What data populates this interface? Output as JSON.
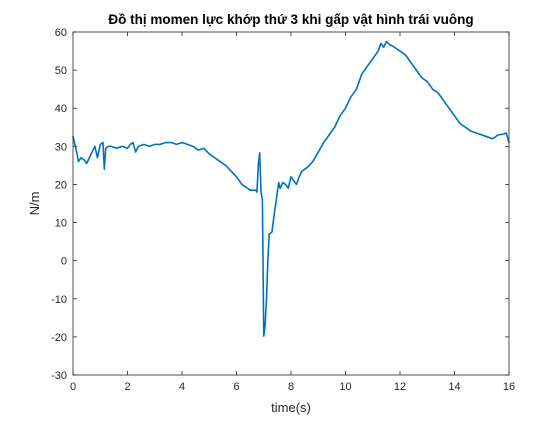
{
  "chart_data": {
    "type": "line",
    "title": "Đồ thị momen lực khớp thứ 3 khi gấp vật hình trái vuông",
    "xlabel": "time(s)",
    "ylabel": "N/m",
    "xlim": [
      0,
      16
    ],
    "ylim": [
      -30,
      60
    ],
    "grid": false,
    "x_ticks": [
      0,
      2,
      4,
      6,
      8,
      10,
      12,
      14,
      16
    ],
    "y_ticks": [
      -30,
      -20,
      -10,
      0,
      10,
      20,
      30,
      40,
      50,
      60
    ],
    "x_tick_labels": [
      "0",
      "2",
      "4",
      "6",
      "8",
      "10",
      "12",
      "14",
      "16"
    ],
    "y_tick_labels": [
      "-30",
      "-20",
      "-10",
      "0",
      "10",
      "20",
      "30",
      "40",
      "50",
      "60"
    ],
    "colors": {
      "series": "#0072BD",
      "axes": "#262626",
      "background": "#ffffff"
    },
    "series": [
      {
        "x": [
          0.0,
          0.07,
          0.15,
          0.2,
          0.3,
          0.4,
          0.5,
          0.6,
          0.7,
          0.8,
          0.9,
          1.0,
          1.1,
          1.15,
          1.2,
          1.3,
          1.4,
          1.6,
          1.8,
          2.0,
          2.1,
          2.2,
          2.3,
          2.4,
          2.6,
          2.8,
          3.0,
          3.2,
          3.4,
          3.6,
          3.8,
          4.0,
          4.2,
          4.4,
          4.6,
          4.8,
          5.0,
          5.2,
          5.4,
          5.6,
          5.8,
          6.0,
          6.2,
          6.4,
          6.5,
          6.6,
          6.7,
          6.75,
          6.8,
          6.85,
          6.9,
          6.95,
          7.0,
          7.05,
          7.1,
          7.15,
          7.2,
          7.3,
          7.4,
          7.5,
          7.55,
          7.6,
          7.7,
          7.8,
          7.9,
          8.0,
          8.1,
          8.2,
          8.3,
          8.4,
          8.5,
          8.6,
          8.8,
          9.0,
          9.2,
          9.4,
          9.6,
          9.8,
          10.0,
          10.2,
          10.4,
          10.6,
          10.8,
          11.0,
          11.2,
          11.3,
          11.4,
          11.5,
          11.6,
          11.8,
          12.0,
          12.2,
          12.4,
          12.6,
          12.8,
          13.0,
          13.2,
          13.4,
          13.6,
          13.8,
          14.0,
          14.2,
          14.4,
          14.6,
          14.8,
          15.0,
          15.2,
          15.4,
          15.6,
          15.8,
          15.9,
          16.0
        ],
        "values": [
          32.5,
          30.5,
          28,
          26,
          27,
          26.5,
          25.5,
          27,
          28.5,
          30,
          27,
          30.5,
          31,
          24,
          29.5,
          30,
          30,
          29.5,
          30,
          29.5,
          30.5,
          31,
          28.5,
          30,
          30.5,
          30,
          30.5,
          30.5,
          31,
          31,
          30.5,
          31,
          30.5,
          30,
          29,
          29.5,
          28,
          27,
          26,
          25,
          23.5,
          22,
          20,
          19,
          18.5,
          18.5,
          18.5,
          18,
          25,
          28.3,
          18,
          16,
          -19.8,
          -17,
          -10,
          0,
          7,
          7.5,
          13,
          18,
          20.5,
          19,
          20.5,
          20,
          19,
          22,
          21,
          20,
          22,
          23.5,
          24,
          24.5,
          26,
          28.5,
          31,
          33,
          35,
          38,
          40,
          43,
          45,
          49,
          51,
          53,
          55,
          57,
          56,
          57.5,
          56.8,
          56,
          55,
          54,
          52,
          50,
          48,
          47,
          45,
          44,
          42,
          40,
          38,
          36,
          35,
          34,
          33.5,
          33,
          32.5,
          32,
          33,
          33.2,
          33.5,
          31
        ]
      }
    ]
  }
}
